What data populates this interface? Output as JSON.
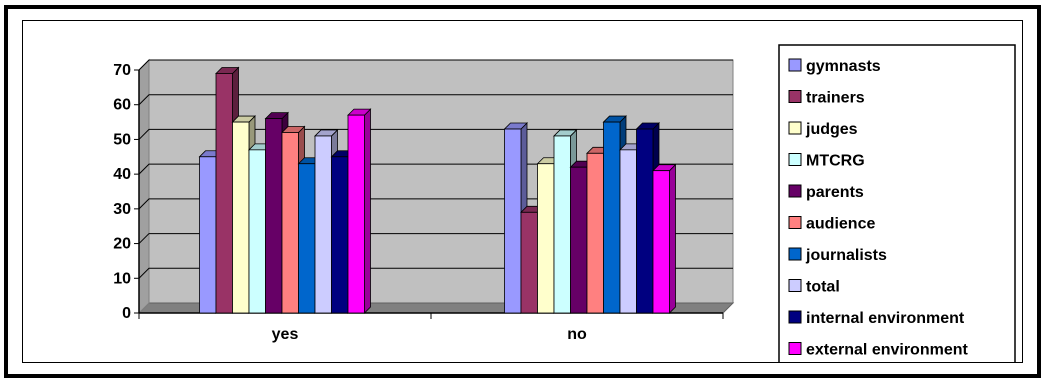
{
  "chart_data": {
    "type": "bar",
    "categories": [
      "yes",
      "no"
    ],
    "ylim": [
      0,
      70
    ],
    "yticks": [
      "0",
      "10",
      "20",
      "30",
      "40",
      "50",
      "60",
      "70"
    ],
    "grid": true,
    "legend_position": "right",
    "series": [
      {
        "name": "gymnasts",
        "color": "#9999ff",
        "values": [
          45,
          53
        ]
      },
      {
        "name": "trainers",
        "color": "#993366",
        "values": [
          69,
          29
        ]
      },
      {
        "name": "judges",
        "color": "#ffffcc",
        "values": [
          55,
          43
        ]
      },
      {
        "name": "MTCRG",
        "color": "#ccffff",
        "values": [
          47,
          51
        ]
      },
      {
        "name": "parents",
        "color": "#660066",
        "values": [
          56,
          42
        ]
      },
      {
        "name": "audience",
        "color": "#ff8080",
        "values": [
          52,
          46
        ]
      },
      {
        "name": "journalists",
        "color": "#0066cc",
        "values": [
          43,
          55
        ]
      },
      {
        "name": "total",
        "color": "#ccccff",
        "values": [
          51,
          47
        ]
      },
      {
        "name": "internal environment",
        "color": "#000080",
        "values": [
          45,
          53
        ]
      },
      {
        "name": "external environment",
        "color": "#ff00ff",
        "values": [
          57,
          41
        ]
      }
    ]
  }
}
